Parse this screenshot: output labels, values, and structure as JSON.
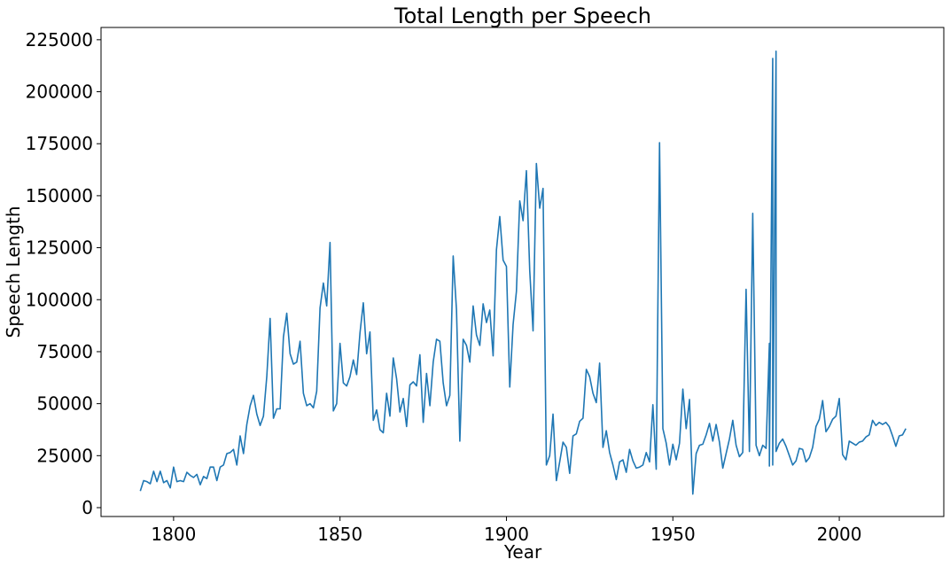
{
  "chart_data": {
    "type": "line",
    "title": "Total Length per Speech",
    "x_label": "Year",
    "y_label": "Speech Length",
    "color": "#1f77b4",
    "xlim": [
      1778.2,
      2031.4
    ],
    "ylim": [
      -4260,
      230900
    ],
    "xticks": [
      1800,
      1850,
      1900,
      1950,
      2000
    ],
    "yticks": [
      0,
      25000,
      50000,
      75000,
      100000,
      125000,
      150000,
      175000,
      200000,
      225000
    ],
    "x": [
      1790,
      1791,
      1792,
      1793,
      1794,
      1795,
      1796,
      1797,
      1798,
      1799,
      1800,
      1801,
      1802,
      1803,
      1804,
      1805,
      1806,
      1807,
      1808,
      1809,
      1810,
      1811,
      1812,
      1813,
      1814,
      1815,
      1816,
      1817,
      1818,
      1819,
      1820,
      1821,
      1822,
      1823,
      1824,
      1825,
      1826,
      1827,
      1828,
      1829,
      1830,
      1831,
      1832,
      1833,
      1834,
      1835,
      1836,
      1837,
      1838,
      1839,
      1840,
      1841,
      1842,
      1843,
      1844,
      1845,
      1846,
      1847,
      1848,
      1849,
      1850,
      1851,
      1852,
      1853,
      1854,
      1855,
      1856,
      1857,
      1858,
      1859,
      1860,
      1861,
      1862,
      1863,
      1864,
      1865,
      1866,
      1867,
      1868,
      1869,
      1870,
      1871,
      1872,
      1873,
      1874,
      1875,
      1876,
      1877,
      1878,
      1879,
      1880,
      1881,
      1882,
      1883,
      1884,
      1885,
      1886,
      1887,
      1888,
      1889,
      1890,
      1891,
      1892,
      1893,
      1894,
      1895,
      1896,
      1897,
      1898,
      1899,
      1900,
      1901,
      1902,
      1903,
      1904,
      1905,
      1906,
      1907,
      1908,
      1909,
      1910,
      1911,
      1912,
      1913,
      1914,
      1915,
      1916,
      1917,
      1918,
      1919,
      1920,
      1921,
      1922,
      1923,
      1924,
      1925,
      1926,
      1927,
      1928,
      1929,
      1930,
      1931,
      1932,
      1933,
      1934,
      1935,
      1936,
      1937,
      1938,
      1939,
      1940,
      1941,
      1942,
      1943,
      1944,
      1945,
      1946,
      1947,
      1948,
      1949,
      1950,
      1951,
      1952,
      1953,
      1954,
      1955,
      1956,
      1957,
      1958,
      1959,
      1960,
      1961,
      1962,
      1963,
      1964,
      1965,
      1966,
      1967,
      1968,
      1969,
      1970,
      1971,
      1972,
      1973,
      1974,
      1975,
      1976,
      1977,
      1978,
      1979,
      1979,
      1980,
      1980,
      1981,
      1981,
      1982,
      1983,
      1984,
      1985,
      1986,
      1987,
      1988,
      1989,
      1990,
      1991,
      1992,
      1993,
      1994,
      1995,
      1996,
      1997,
      1998,
      1999,
      2000,
      2001,
      2002,
      2003,
      2004,
      2005,
      2006,
      2007,
      2008,
      2009,
      2010,
      2011,
      2012,
      2013,
      2014,
      2015,
      2016,
      2017,
      2018,
      2019,
      2020
    ],
    "values": [
      8000,
      13000,
      12500,
      11500,
      17500,
      12500,
      17500,
      12000,
      13000,
      9500,
      19500,
      12500,
      13000,
      12500,
      17000,
      15500,
      14500,
      16000,
      11000,
      15000,
      14000,
      19500,
      19500,
      13000,
      19500,
      20500,
      26000,
      26500,
      28000,
      20500,
      34500,
      26000,
      40000,
      49000,
      54000,
      45000,
      39500,
      44000,
      63000,
      91000,
      43000,
      47500,
      47500,
      82000,
      93500,
      74000,
      69000,
      70000,
      80000,
      55000,
      49000,
      50000,
      48000,
      56000,
      96000,
      108000,
      97000,
      127500,
      46500,
      50000,
      79000,
      60000,
      58500,
      63000,
      71000,
      64000,
      84000,
      98500,
      74000,
      84500,
      42000,
      47000,
      37500,
      36000,
      55000,
      44000,
      72000,
      62000,
      46000,
      52500,
      39000,
      59000,
      60500,
      58500,
      73500,
      41000,
      64500,
      49000,
      70000,
      81000,
      80000,
      60000,
      49000,
      54000,
      121000,
      95000,
      32000,
      81000,
      78000,
      70000,
      97000,
      83000,
      78000,
      98000,
      89000,
      95000,
      73000,
      124000,
      140000,
      119000,
      116000,
      58000,
      88000,
      104000,
      147500,
      138000,
      162000,
      114000,
      85000,
      165500,
      144000,
      153500,
      20500,
      25000,
      45000,
      13000,
      22000,
      31500,
      29000,
      16500,
      34500,
      35500,
      41500,
      43000,
      66500,
      63000,
      55000,
      50500,
      69500,
      29000,
      37000,
      26500,
      20500,
      13500,
      22000,
      23000,
      17000,
      28000,
      22500,
      19000,
      19500,
      20500,
      26500,
      22000,
      49500,
      18500,
      175500,
      38000,
      31000,
      20500,
      30500,
      23000,
      31000,
      57000,
      38000,
      52000,
      6500,
      26000,
      30000,
      30500,
      35000,
      40500,
      32000,
      40000,
      31500,
      19000,
      26000,
      33000,
      42000,
      30000,
      24500,
      26500,
      105000,
      27000,
      141500,
      30000,
      25000,
      30000,
      28500,
      79000,
      20000,
      216000,
      20500,
      219500,
      27000,
      31000,
      33000,
      29500,
      25000,
      20500,
      22500,
      28500,
      28000,
      22000,
      24000,
      29000,
      39000,
      42500,
      51500,
      36500,
      39000,
      42500,
      44000,
      52500,
      25500,
      23000,
      32000,
      31000,
      30000,
      31500,
      32000,
      34000,
      35000,
      42000,
      39500,
      41000,
      40000,
      41000,
      39000,
      34500,
      29500,
      34500,
      35000,
      38000
    ]
  }
}
